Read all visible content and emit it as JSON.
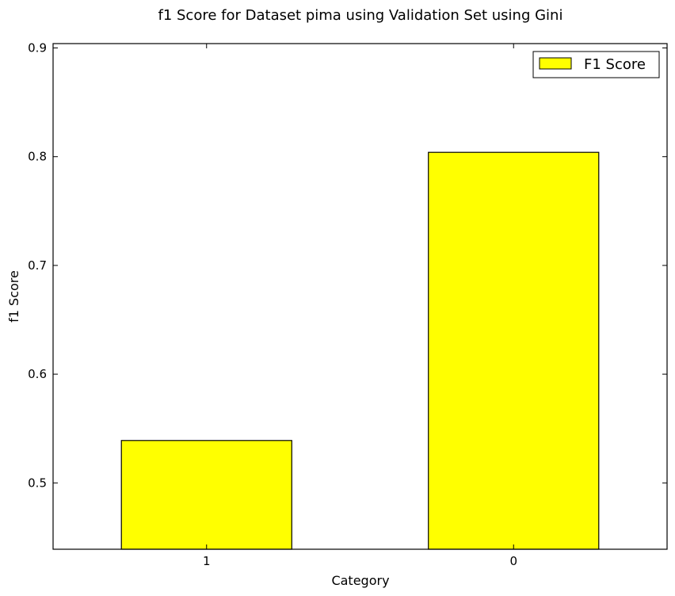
{
  "chart_data": {
    "type": "bar",
    "title": "f1 Score for Dataset pima using Validation Set using Gini",
    "xlabel": "Category",
    "ylabel": "f1 Score",
    "categories": [
      "1",
      "0"
    ],
    "series": [
      {
        "name": "F1 Score",
        "values": [
          0.539,
          0.804
        ],
        "color": "#ffff00"
      }
    ],
    "ylim": [
      0.439,
      0.904
    ],
    "yticks": [
      0.5,
      0.6,
      0.7,
      0.8,
      0.9
    ],
    "ytick_labels": [
      "0.5",
      "0.6",
      "0.7",
      "0.8",
      "0.9"
    ],
    "grid": false,
    "legend": {
      "position": "top-right",
      "label": "F1 Score"
    },
    "bar_edge_color": "#000000"
  }
}
